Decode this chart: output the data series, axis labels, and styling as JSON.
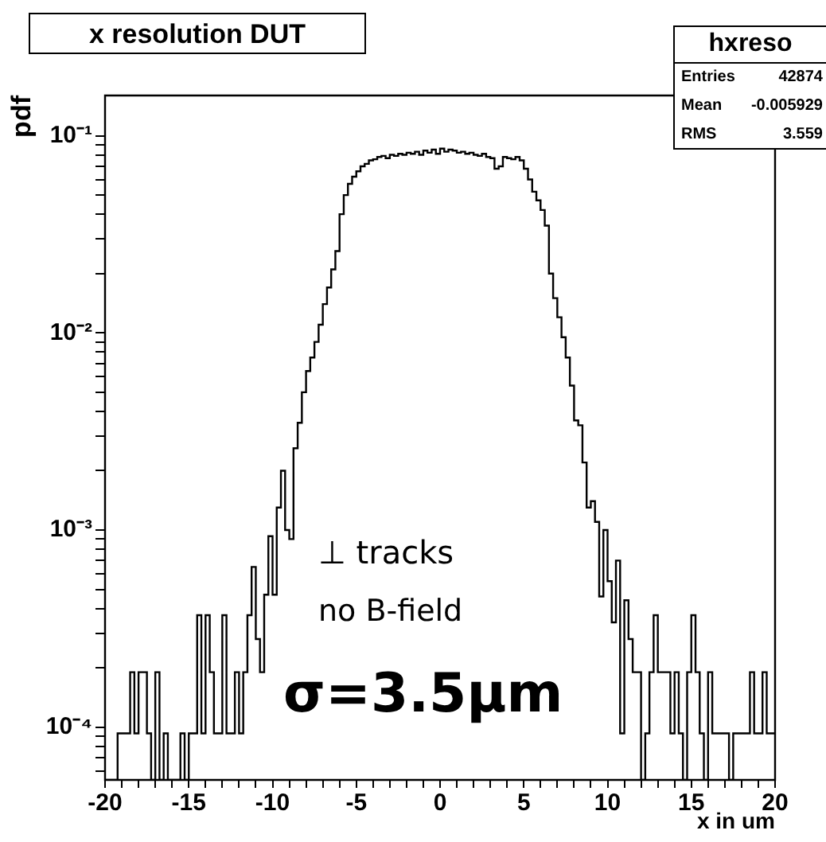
{
  "chart_data": {
    "type": "histogram",
    "title": "x resolution DUT",
    "xlabel": "x in um",
    "ylabel": "pdf",
    "log": "y",
    "grid": false,
    "legend": false,
    "color": "#000000",
    "bins": [
      -20,
      -19.75,
      -19.5,
      -19.25,
      -19,
      -18.75,
      -18.5,
      -18.25,
      -18,
      -17.75,
      -17.5,
      -17.25,
      -17,
      -16.75,
      -16.5,
      -16.25,
      -16,
      -15.75,
      -15.5,
      -15.25,
      -15,
      -14.75,
      -14.5,
      -14.25,
      -14,
      -13.75,
      -13.5,
      -13.25,
      -13,
      -12.75,
      -12.5,
      -12.25,
      -12,
      -11.75,
      -11.5,
      -11.25,
      -11,
      -10.75,
      -10.5,
      -10.25,
      -10,
      -9.75,
      -9.5,
      -9.25,
      -9,
      -8.75,
      -8.5,
      -8.25,
      -8,
      -7.75,
      -7.5,
      -7.25,
      -7,
      -6.75,
      -6.5,
      -6.25,
      -6,
      -5.75,
      -5.5,
      -5.25,
      -5,
      -4.75,
      -4.5,
      -4.25,
      -4,
      -3.75,
      -3.5,
      -3.25,
      -3,
      -2.75,
      -2.5,
      -2.25,
      -2,
      -1.75,
      -1.5,
      -1.25,
      -1,
      -0.75,
      -0.5,
      -0.25,
      0,
      0.25,
      0.5,
      0.75,
      1,
      1.25,
      1.5,
      1.75,
      2,
      2.25,
      2.5,
      2.75,
      3,
      3.25,
      3.5,
      3.75,
      4,
      4.25,
      4.5,
      4.75,
      5,
      5.25,
      5.5,
      5.75,
      6,
      6.25,
      6.5,
      6.75,
      7,
      7.25,
      7.5,
      7.75,
      8,
      8.25,
      8.5,
      8.75,
      9,
      9.25,
      9.5,
      9.75,
      10,
      10.25,
      10.5,
      10.75,
      11,
      11.25,
      11.5,
      11.75,
      12,
      12.25,
      12.5,
      12.75,
      13,
      13.25,
      13.5,
      13.75,
      14,
      14.25,
      14.5,
      14.75,
      15,
      15.25,
      15.5,
      15.75,
      16,
      16.25,
      16.5,
      16.75,
      17,
      17.25,
      17.5,
      17.75,
      18,
      18.25,
      18.5,
      18.75,
      19,
      19.25,
      19.5,
      19.75,
      20
    ],
    "values": [
      null,
      null,
      null,
      9.3e-05,
      9.3e-05,
      9.3e-05,
      0.00019,
      9.3e-05,
      0.00019,
      0.00019,
      9.3e-05,
      null,
      0.00019,
      null,
      9.3e-05,
      null,
      null,
      null,
      9.3e-05,
      null,
      9.3e-05,
      9.3e-05,
      0.00037,
      9.3e-05,
      0.00037,
      0.00019,
      9.3e-05,
      9.3e-05,
      0.00037,
      9.3e-05,
      9.3e-05,
      0.00019,
      9.3e-05,
      0.00019,
      0.00037,
      0.00065,
      0.00028,
      0.00019,
      0.00047,
      0.00093,
      0.00047,
      0.0013,
      0.002,
      0.001,
      0.0009,
      0.0026,
      0.0035,
      0.005,
      0.0064,
      0.0075,
      0.009,
      0.011,
      0.014,
      0.017,
      0.021,
      0.026,
      0.04,
      0.05,
      0.057,
      0.062,
      0.066,
      0.07,
      0.072,
      0.075,
      0.076,
      0.078,
      0.079,
      0.077,
      0.08,
      0.079,
      0.081,
      0.08,
      0.082,
      0.081,
      0.083,
      0.08,
      0.084,
      0.082,
      0.085,
      0.081,
      0.086,
      0.083,
      0.085,
      0.084,
      0.082,
      0.083,
      0.081,
      0.082,
      0.08,
      0.079,
      0.081,
      0.078,
      0.077,
      0.068,
      0.07,
      0.078,
      0.077,
      0.076,
      0.078,
      0.075,
      0.068,
      0.06,
      0.052,
      0.047,
      0.042,
      0.035,
      0.02,
      0.015,
      0.012,
      0.0095,
      0.0075,
      0.0054,
      0.0036,
      0.0034,
      0.0022,
      0.0013,
      0.0014,
      0.0011,
      0.00046,
      0.001,
      0.00055,
      0.00034,
      0.0007,
      9.3e-05,
      0.00044,
      0.00028,
      0.00019,
      0.00019,
      null,
      9.3e-05,
      0.00019,
      0.00037,
      0.00019,
      0.00019,
      0.00019,
      9.3e-05,
      0.00019,
      9.3e-05,
      null,
      0.00019,
      0.00037,
      0.00019,
      9.3e-05,
      null,
      0.00019,
      9.3e-05,
      9.3e-05,
      9.3e-05,
      9.3e-05,
      null,
      9.3e-05,
      9.3e-05,
      9.3e-05,
      9.3e-05,
      0.00019,
      9.3e-05,
      9.3e-05,
      0.00019,
      9.3e-05,
      9.3e-05
    ],
    "xlim": [
      -20,
      20
    ],
    "xticks": [
      -20,
      {
        "value": -19,
        "label": null
      },
      {
        "value": -18,
        "label": null
      },
      {
        "value": -17,
        "label": null
      },
      {
        "value": -16,
        "label": null
      },
      -15,
      {
        "value": -14,
        "label": null
      },
      {
        "value": -13,
        "label": null
      },
      {
        "value": -12,
        "label": null
      },
      {
        "value": -11,
        "label": null
      },
      -10,
      {
        "value": -9,
        "label": null
      },
      {
        "value": -8,
        "label": null
      },
      {
        "value": -7,
        "label": null
      },
      {
        "value": -6,
        "label": null
      },
      -5,
      {
        "value": -4,
        "label": null
      },
      {
        "value": -3,
        "label": null
      },
      {
        "value": -2,
        "label": null
      },
      {
        "value": -1,
        "label": null
      },
      0,
      {
        "value": 1,
        "label": null
      },
      {
        "value": 2,
        "label": null
      },
      {
        "value": 3,
        "label": null
      },
      {
        "value": 4,
        "label": null
      },
      5,
      {
        "value": 6,
        "label": null
      },
      {
        "value": 7,
        "label": null
      },
      {
        "value": 8,
        "label": null
      },
      {
        "value": 9,
        "label": null
      },
      10,
      {
        "value": 11,
        "label": null
      },
      {
        "value": 12,
        "label": null
      },
      {
        "value": 13,
        "label": null
      },
      {
        "value": 14,
        "label": null
      },
      15,
      {
        "value": 16,
        "label": null
      },
      {
        "value": 17,
        "label": null
      },
      {
        "value": 18,
        "label": null
      },
      {
        "value": 19,
        "label": null
      },
      20
    ],
    "ylim": [
      5.4e-05,
      0.16
    ],
    "yticks": [
      {
        "value": 6e-05,
        "label": null
      },
      {
        "value": 7e-05,
        "label": null
      },
      {
        "value": 8e-05,
        "label": null
      },
      {
        "value": 9e-05,
        "label": null
      },
      {
        "value": 0.0001,
        "label": "10⁻⁴"
      },
      {
        "value": 0.0002,
        "label": null
      },
      {
        "value": 0.0003,
        "label": null
      },
      {
        "value": 0.0004,
        "label": null
      },
      {
        "value": 0.0005,
        "label": null
      },
      {
        "value": 0.0006,
        "label": null
      },
      {
        "value": 0.0007,
        "label": null
      },
      {
        "value": 0.0008,
        "label": null
      },
      {
        "value": 0.0009,
        "label": null
      },
      {
        "value": 0.001,
        "label": "10⁻³"
      },
      {
        "value": 0.002,
        "label": null
      },
      {
        "value": 0.003,
        "label": null
      },
      {
        "value": 0.004,
        "label": null
      },
      {
        "value": 0.005,
        "label": null
      },
      {
        "value": 0.006,
        "label": null
      },
      {
        "value": 0.007,
        "label": null
      },
      {
        "value": 0.008,
        "label": null
      },
      {
        "value": 0.009,
        "label": null
      },
      {
        "value": 0.01,
        "label": "10⁻²"
      },
      {
        "value": 0.02,
        "label": null
      },
      {
        "value": 0.03,
        "label": null
      },
      {
        "value": 0.04,
        "label": null
      },
      {
        "value": 0.05,
        "label": null
      },
      {
        "value": 0.06,
        "label": null
      },
      {
        "value": 0.07,
        "label": null
      },
      {
        "value": 0.08,
        "label": null
      },
      {
        "value": 0.09,
        "label": null
      },
      {
        "value": 0.1,
        "label": "10⁻¹"
      }
    ],
    "annotations": [
      "hxreso",
      "Entries 42874",
      "Mean -0.005929",
      "RMS 3.559",
      "⊥ tracks",
      "no B-field",
      "σ=3.5μm"
    ]
  }
}
